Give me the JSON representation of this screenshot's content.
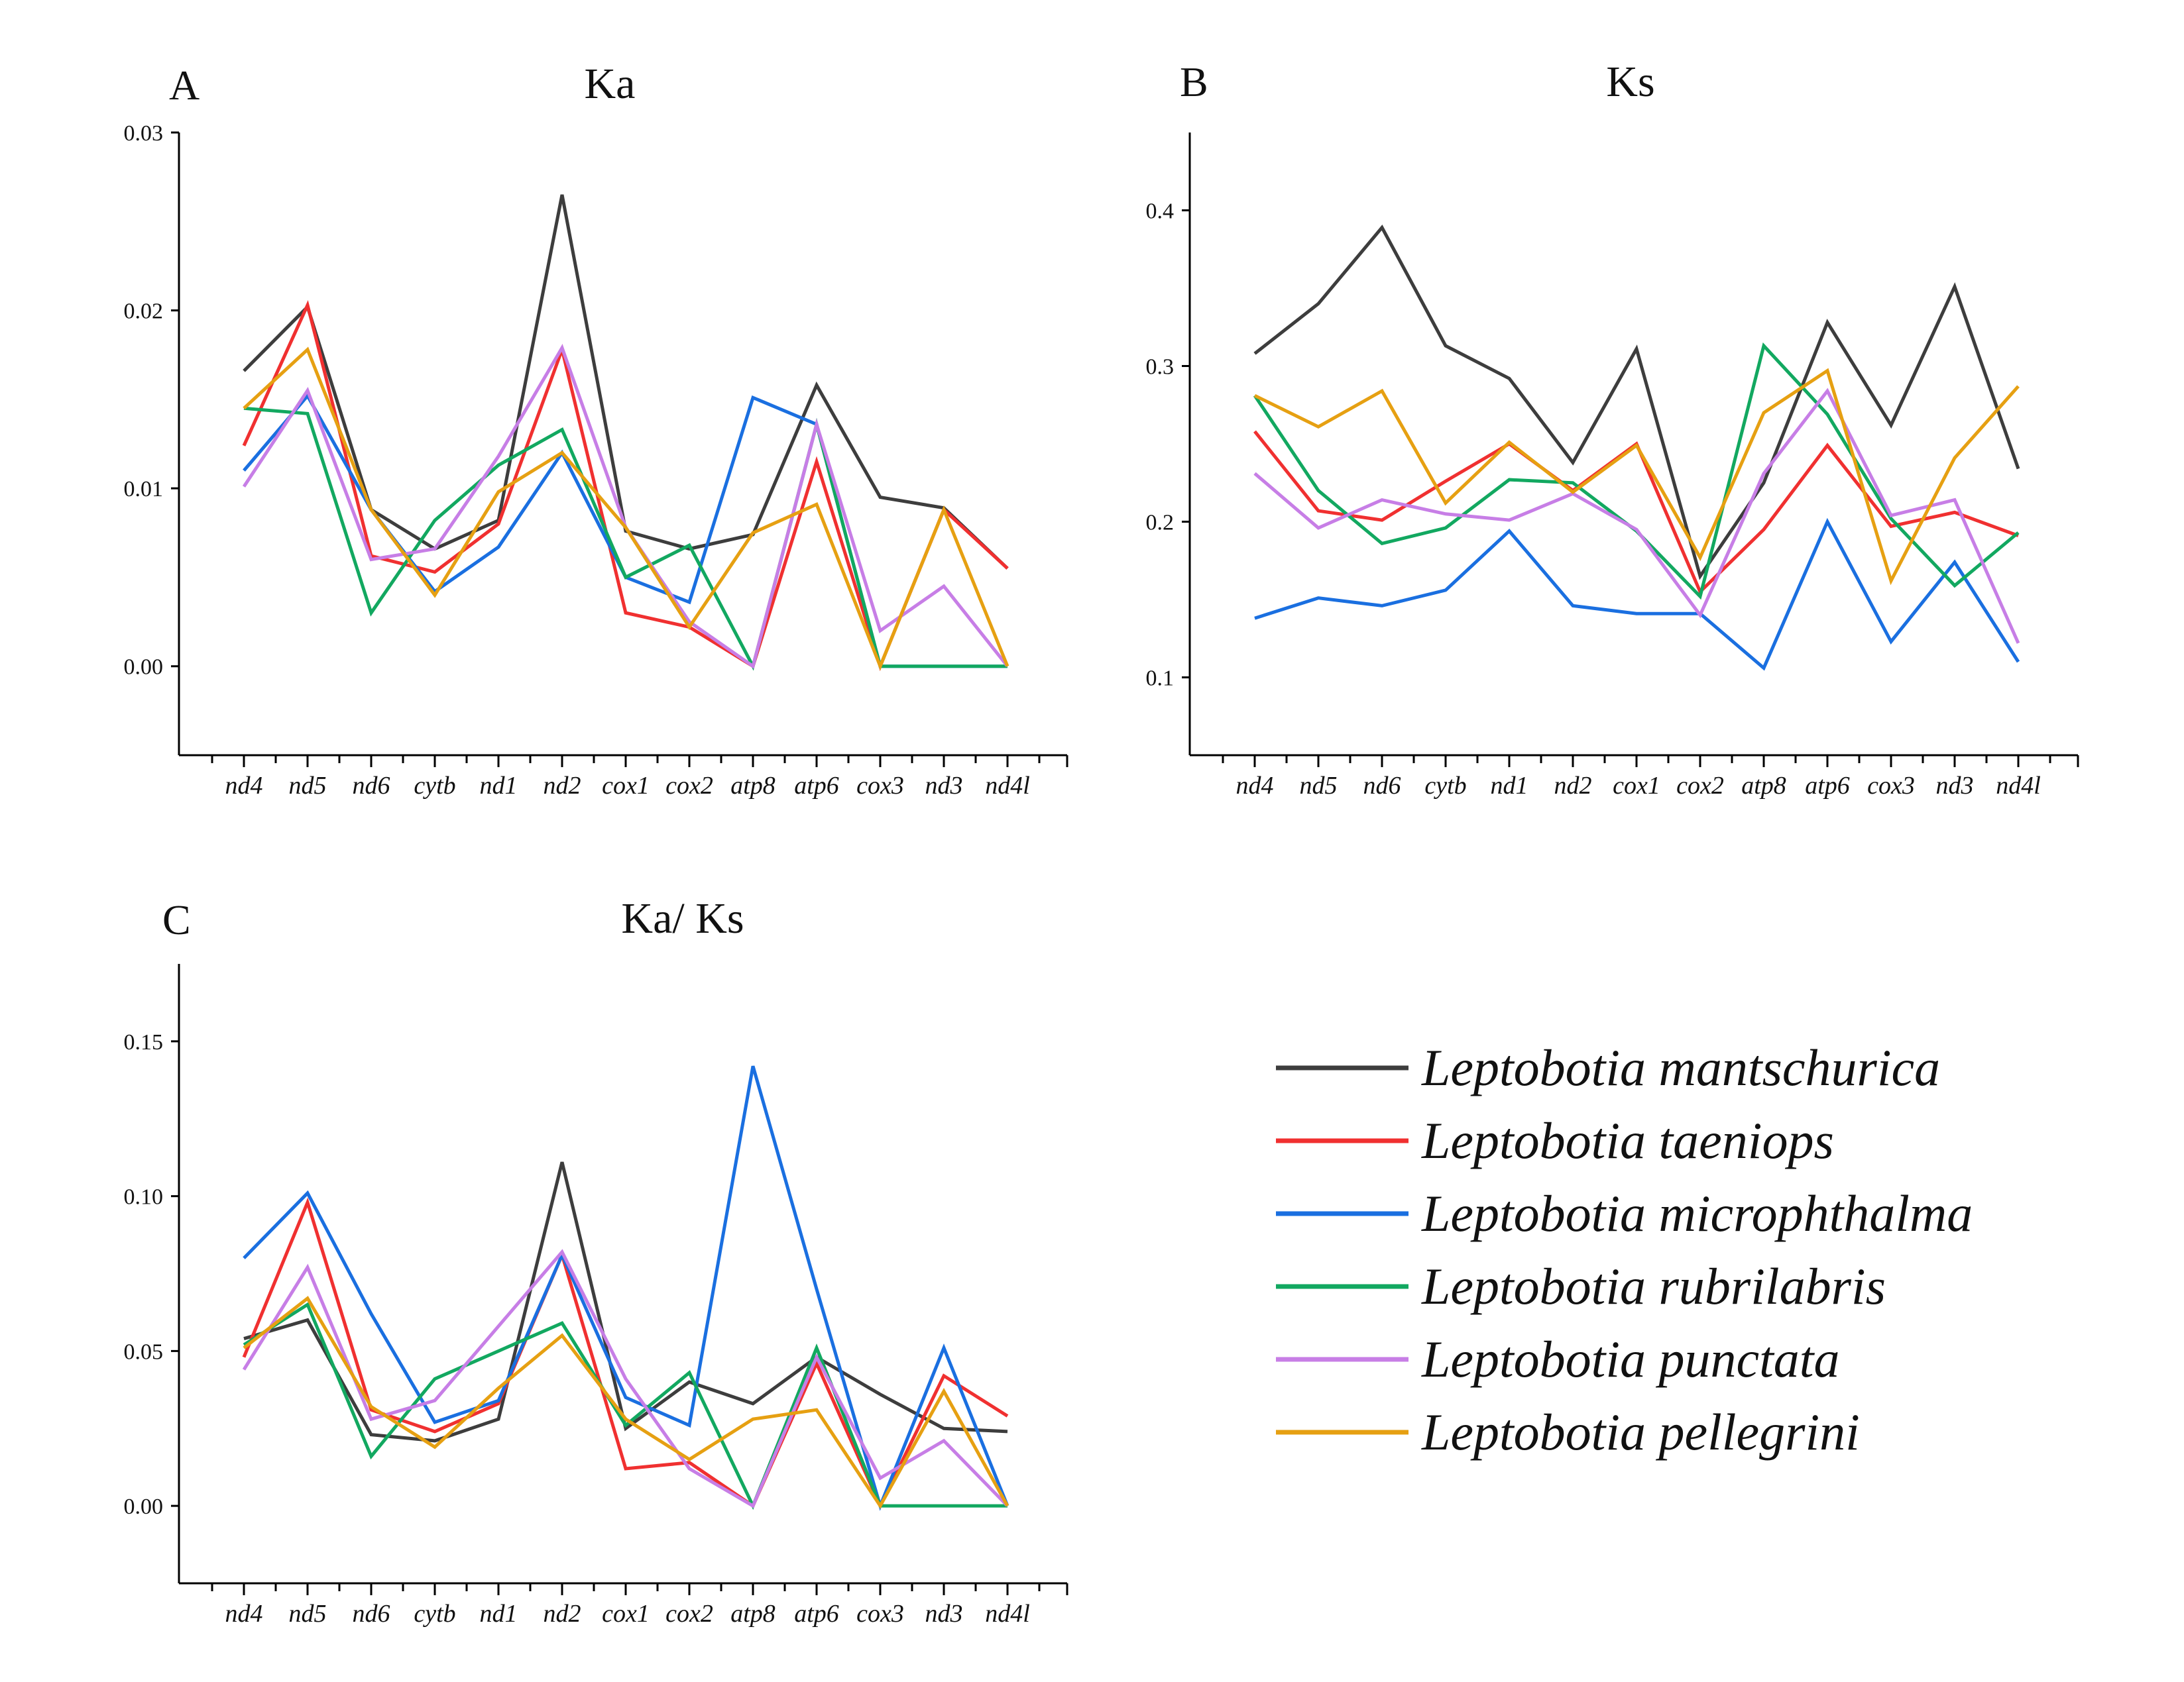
{
  "legend": [
    {
      "name": "Leptobotia mantschurica",
      "color": "#3d3d3d"
    },
    {
      "name": "Leptobotia taeniops",
      "color": "#f03030"
    },
    {
      "name": "Leptobotia microphthalma",
      "color": "#1a6fe0"
    },
    {
      "name": "Leptobotia rubrilabris",
      "color": "#12a860"
    },
    {
      "name": "Leptobotia punctata",
      "color": "#c77ee6"
    },
    {
      "name": "Leptobotia pellegrini",
      "color": "#e6a012"
    }
  ],
  "chart_data": [
    {
      "type": "line",
      "panel": "A",
      "title": "Ka",
      "categories": [
        "nd4",
        "nd5",
        "nd6",
        "cytb",
        "nd1",
        "nd2",
        "cox1",
        "cox2",
        "atp8",
        "atp6",
        "cox3",
        "nd3",
        "nd4l"
      ],
      "ylim": [
        -0.005,
        0.03
      ],
      "yticks": [
        "0.00",
        "0.01",
        "0.02",
        "0.03"
      ],
      "ytick_values": [
        0,
        0.01,
        0.02,
        0.03
      ],
      "series": [
        {
          "name": "Leptobotia mantschurica",
          "values": [
            0.0166,
            0.0202,
            0.0088,
            0.0066,
            0.0082,
            0.0265,
            0.0076,
            0.0066,
            0.0074,
            0.0158,
            0.0095,
            0.0089,
            0.0055
          ]
        },
        {
          "name": "Leptobotia taeniops",
          "values": [
            0.0124,
            0.0203,
            0.0062,
            0.0053,
            0.008,
            0.0178,
            0.003,
            0.0022,
            0.0,
            0.0115,
            0.0,
            0.0088,
            0.0055
          ]
        },
        {
          "name": "Leptobotia microphthalma",
          "values": [
            0.011,
            0.0152,
            0.0088,
            0.0042,
            0.0067,
            0.012,
            0.005,
            0.0036,
            0.0151,
            0.0136,
            0.0,
            0.0,
            0.0
          ]
        },
        {
          "name": "Leptobotia rubrilabris",
          "values": [
            0.0145,
            0.0142,
            0.003,
            0.0082,
            0.0113,
            0.0133,
            0.005,
            0.0068,
            0.0,
            0.0136,
            0.0,
            0.0,
            0.0
          ]
        },
        {
          "name": "Leptobotia punctata",
          "values": [
            0.0101,
            0.0155,
            0.006,
            0.0066,
            0.0118,
            0.0179,
            0.0078,
            0.0025,
            0.0,
            0.0136,
            0.002,
            0.0045,
            0.0
          ]
        },
        {
          "name": "Leptobotia pellegrini",
          "values": [
            0.0145,
            0.0178,
            0.0088,
            0.004,
            0.0098,
            0.012,
            0.0078,
            0.0022,
            0.0075,
            0.0091,
            0.0,
            0.0088,
            0.0
          ]
        }
      ]
    },
    {
      "type": "line",
      "panel": "B",
      "title": "Ks",
      "categories": [
        "nd4",
        "nd5",
        "nd6",
        "cytb",
        "nd1",
        "nd2",
        "cox1",
        "cox2",
        "atp8",
        "atp6",
        "cox3",
        "nd3",
        "nd4l"
      ],
      "ylim": [
        0.05,
        0.45
      ],
      "yticks": [
        "0.1",
        "0.2",
        "0.3",
        "0.4"
      ],
      "ytick_values": [
        0.1,
        0.2,
        0.3,
        0.4
      ],
      "series": [
        {
          "name": "Leptobotia mantschurica",
          "values": [
            0.308,
            0.34,
            0.389,
            0.313,
            0.292,
            0.238,
            0.311,
            0.165,
            0.225,
            0.328,
            0.262,
            0.351,
            0.234
          ]
        },
        {
          "name": "Leptobotia taeniops",
          "values": [
            0.258,
            0.207,
            0.201,
            0.226,
            0.25,
            0.22,
            0.25,
            0.155,
            0.195,
            0.249,
            0.197,
            0.206,
            0.191
          ]
        },
        {
          "name": "Leptobotia microphthalma",
          "values": [
            0.138,
            0.151,
            0.146,
            0.156,
            0.194,
            0.146,
            0.141,
            0.141,
            0.106,
            0.2,
            0.123,
            0.174,
            0.11
          ]
        },
        {
          "name": "Leptobotia rubrilabris",
          "values": [
            0.281,
            0.22,
            0.186,
            0.196,
            0.227,
            0.225,
            0.194,
            0.152,
            0.313,
            0.269,
            0.202,
            0.159,
            0.193
          ]
        },
        {
          "name": "Leptobotia punctata",
          "values": [
            0.231,
            0.196,
            0.214,
            0.205,
            0.201,
            0.218,
            0.195,
            0.14,
            0.231,
            0.284,
            0.204,
            0.214,
            0.122
          ]
        },
        {
          "name": "Leptobotia pellegrini",
          "values": [
            0.281,
            0.261,
            0.284,
            0.212,
            0.251,
            0.219,
            0.249,
            0.177,
            0.27,
            0.297,
            0.162,
            0.241,
            0.287
          ]
        }
      ]
    },
    {
      "type": "line",
      "panel": "C",
      "title": "Ka/ Ks",
      "categories": [
        "nd4",
        "nd5",
        "nd6",
        "cytb",
        "nd1",
        "nd2",
        "cox1",
        "cox2",
        "atp8",
        "atp6",
        "cox3",
        "nd3",
        "nd4l"
      ],
      "ylim": [
        -0.025,
        0.175
      ],
      "yticks": [
        "0.00",
        "0.05",
        "0.10",
        "0.15"
      ],
      "ytick_values": [
        0,
        0.05,
        0.1,
        0.15
      ],
      "series": [
        {
          "name": "Leptobotia mantschurica",
          "values": [
            0.054,
            0.06,
            0.023,
            0.021,
            0.028,
            0.111,
            0.025,
            0.04,
            0.033,
            0.048,
            0.036,
            0.025,
            0.024
          ]
        },
        {
          "name": "Leptobotia taeniops",
          "values": [
            0.048,
            0.098,
            0.031,
            0.024,
            0.033,
            0.081,
            0.012,
            0.014,
            0.0,
            0.046,
            0.0,
            0.042,
            0.029
          ]
        },
        {
          "name": "Leptobotia microphthalma",
          "values": [
            0.08,
            0.101,
            0.062,
            0.027,
            0.034,
            0.081,
            0.035,
            0.026,
            0.142,
            0.07,
            0.0,
            0.051,
            0.0
          ]
        },
        {
          "name": "Leptobotia rubrilabris",
          "values": [
            0.052,
            0.065,
            0.016,
            0.041,
            0.05,
            0.059,
            0.026,
            0.043,
            0.0,
            0.051,
            0.0,
            0.0,
            0.0
          ]
        },
        {
          "name": "Leptobotia punctata",
          "values": [
            0.044,
            0.077,
            0.028,
            0.034,
            0.058,
            0.082,
            0.041,
            0.012,
            0.0,
            0.048,
            0.009,
            0.021,
            0.0
          ]
        },
        {
          "name": "Leptobotia pellegrini",
          "values": [
            0.051,
            0.067,
            0.032,
            0.019,
            0.038,
            0.055,
            0.028,
            0.015,
            0.028,
            0.031,
            0.0,
            0.037,
            0.0
          ]
        }
      ]
    }
  ]
}
